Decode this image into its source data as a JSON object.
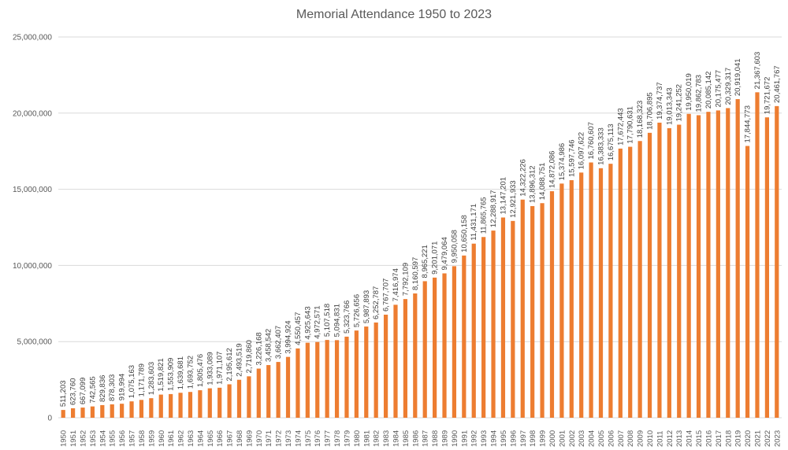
{
  "chart_data": {
    "type": "bar",
    "title": "Memorial Attendance 1950 to 2023",
    "xlabel": "",
    "ylabel": "",
    "ylim": [
      0,
      25000000
    ],
    "yticks": [
      "0",
      "5,000,000",
      "10,000,000",
      "15,000,000",
      "20,000,000",
      "25,000,000"
    ],
    "grid": true,
    "bar_color": "#ed7d31",
    "categories": [
      "1950",
      "1951",
      "1952",
      "1953",
      "1954",
      "1955",
      "1956",
      "1957",
      "1958",
      "1959",
      "1960",
      "1961",
      "1962",
      "1963",
      "1964",
      "1965",
      "1966",
      "1967",
      "1968",
      "1969",
      "1970",
      "1971",
      "1972",
      "1973",
      "1974",
      "1975",
      "1976",
      "1977",
      "1978",
      "1979",
      "1980",
      "1981",
      "1982",
      "1983",
      "1984",
      "1985",
      "1986",
      "1987",
      "1988",
      "1989",
      "1990",
      "1991",
      "1992",
      "1993",
      "1994",
      "1995",
      "1996",
      "1997",
      "1998",
      "1999",
      "2000",
      "2001",
      "2002",
      "2003",
      "2004",
      "2005",
      "2006",
      "2007",
      "2008",
      "2009",
      "2010",
      "2011",
      "2012",
      "2013",
      "2014",
      "2015",
      "2016",
      "2017",
      "2018",
      "2019",
      "2020",
      "2021",
      "2022",
      "2023"
    ],
    "values": [
      511203,
      623760,
      667099,
      742565,
      829836,
      878303,
      919994,
      1075163,
      1171789,
      1283603,
      1519821,
      1553909,
      1639681,
      1693752,
      1805476,
      1933089,
      1971107,
      2195612,
      2493519,
      2719860,
      3226168,
      3458542,
      3662407,
      3994924,
      4550457,
      4925643,
      4972571,
      5107518,
      5094831,
      5323766,
      5726656,
      5987893,
      6252787,
      6767707,
      7416974,
      7792109,
      8160597,
      8965221,
      9201071,
      9479064,
      9950058,
      10650158,
      11431171,
      11865765,
      12288917,
      13147201,
      12921933,
      14322226,
      13896312,
      14088751,
      14872086,
      15374986,
      15597746,
      16097622,
      16760607,
      16383333,
      16675113,
      17672443,
      17790631,
      18168323,
      18706895,
      19374737,
      19013343,
      19241252,
      19950019,
      19862783,
      20085142,
      20175477,
      20329317,
      20919041,
      17844773,
      21367603,
      19721672,
      20461767
    ],
    "data_labels": [
      "511,203",
      "623,760",
      "667,099",
      "742,565",
      "829,836",
      "878,303",
      "919,994",
      "1,075,163",
      "1,171,789",
      "1,283,603",
      "1,519,821",
      "1,553,909",
      "1,639,681",
      "1,693,752",
      "1,805,476",
      "1,933,089",
      "1,971,107",
      "2,195,612",
      "2,493,519",
      "2,719,860",
      "3,226,168",
      "3,458,542",
      "3,662,407",
      "3,994,924",
      "4,550,457",
      "4,925,643",
      "4,972,571",
      "5,107,518",
      "5,094,831",
      "5,323,766",
      "5,726,656",
      "5,987,893",
      "6,252,787",
      "6,767,707",
      "7,416,974",
      "7,792,109",
      "8,160,597",
      "8,965,221",
      "9,201,071",
      "9,479,064",
      "9,950,058",
      "10,650,158",
      "11,431,171",
      "11,865,765",
      "12,288,917",
      "13,147,201",
      "12,921,933",
      "14,322,226",
      "13,896,312",
      "14,088,751",
      "14,872,086",
      "15,374,986",
      "15,597,746",
      "16,097,622",
      "16,760,607",
      "16,383,333",
      "16,675,113",
      "17,672,443",
      "17,790,631",
      "18,168,323",
      "18,706,895",
      "19,374,737",
      "19,013,343",
      "19,241,252",
      "19,950,019",
      "19,862,783",
      "20,085,142",
      "20,175,477",
      "20,329,317",
      "20,919,041",
      "17,844,773",
      "21,367,603",
      "19,721,672",
      "20,461,767"
    ]
  }
}
